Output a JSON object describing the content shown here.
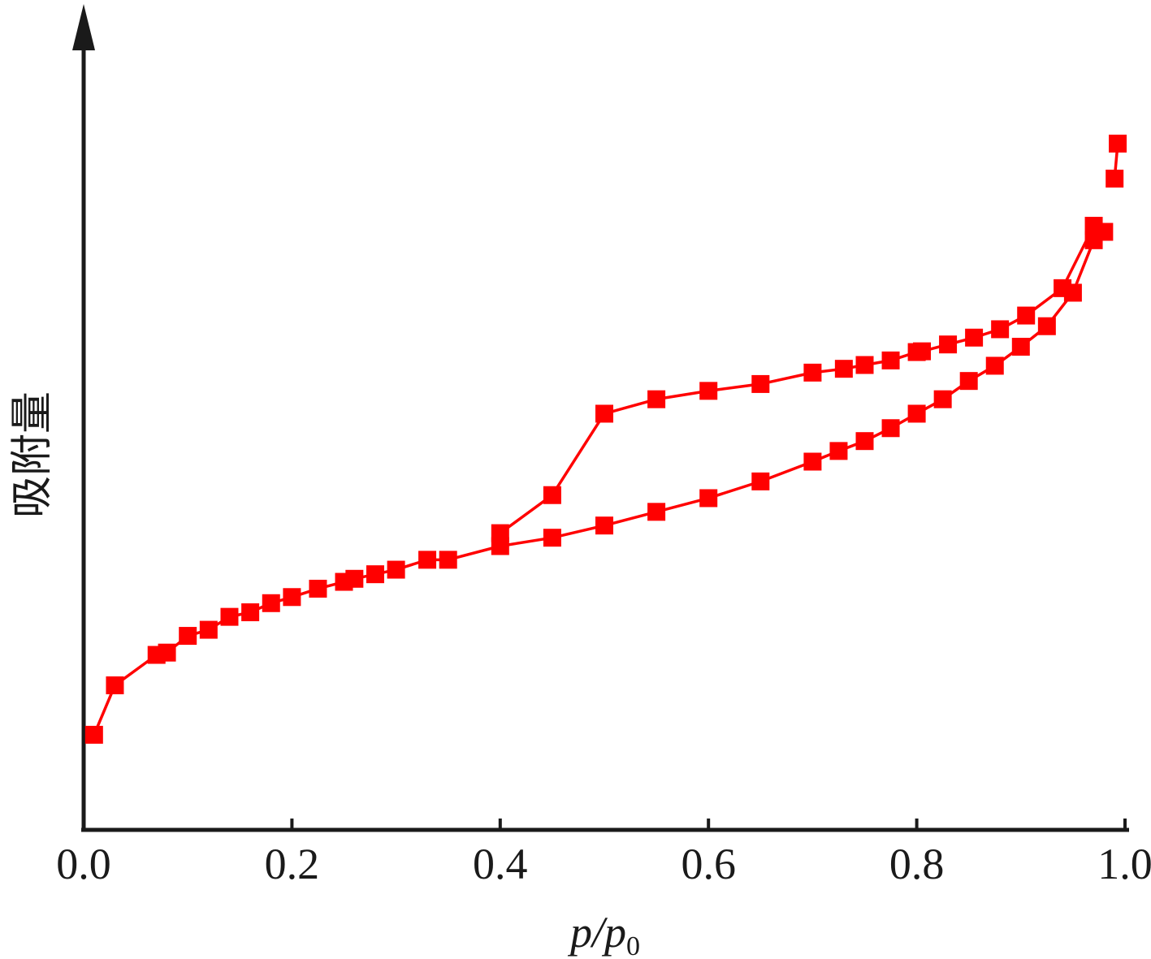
{
  "chart_data": {
    "type": "line",
    "title": "",
    "xlabel": {
      "main": "p/p",
      "subscript": "0"
    },
    "ylabel": "吸附量",
    "xlim": [
      0.0,
      1.0
    ],
    "xticks": [
      {
        "value": 0.0,
        "label": "0.0"
      },
      {
        "value": 0.2,
        "label": "0.2"
      },
      {
        "value": 0.4,
        "label": "0.4"
      },
      {
        "value": 0.6,
        "label": "0.6"
      },
      {
        "value": 0.8,
        "label": "0.8"
      },
      {
        "value": 1.0,
        "label": "1.0"
      }
    ],
    "yticks_shown": false,
    "ylim": [
      0,
      100
    ],
    "grid": false,
    "legend": "none",
    "series_color": "#ff0000",
    "series": [
      {
        "x": [
          0.01,
          0.03,
          0.07,
          0.08,
          0.1,
          0.12,
          0.14,
          0.16,
          0.18,
          0.2,
          0.225,
          0.25,
          0.26,
          0.28,
          0.3,
          0.33,
          0.35,
          0.4,
          0.45,
          0.5,
          0.55,
          0.6,
          0.65,
          0.7,
          0.725,
          0.75,
          0.775,
          0.8,
          0.825,
          0.85,
          0.875,
          0.9,
          0.925,
          0.95,
          0.97
        ],
        "y": [
          12.5,
          19.0,
          23.0,
          23.3,
          25.5,
          26.3,
          28.0,
          28.6,
          29.8,
          30.6,
          31.7,
          32.6,
          33.0,
          33.6,
          34.2,
          35.5,
          35.5,
          37.3,
          38.4,
          40.0,
          41.8,
          43.6,
          45.8,
          48.4,
          49.8,
          51.1,
          52.8,
          54.7,
          56.6,
          59.0,
          61.0,
          63.5,
          66.2,
          70.6,
          77.5
        ]
      },
      {
        "x": [
          0.98,
          0.97,
          0.94,
          0.905,
          0.88,
          0.855,
          0.83,
          0.805,
          0.8,
          0.775,
          0.75,
          0.73,
          0.7,
          0.65,
          0.6,
          0.55,
          0.5,
          0.45,
          0.4
        ],
        "y": [
          78.6,
          79.4,
          71.2,
          67.6,
          65.8,
          64.7,
          63.8,
          62.9,
          62.8,
          61.7,
          61.1,
          60.6,
          60.1,
          58.6,
          57.7,
          56.6,
          54.7,
          44.0,
          39.0
        ]
      },
      {
        "x": [
          0.99,
          0.993
        ],
        "y": [
          85.6,
          90.2
        ]
      }
    ]
  }
}
